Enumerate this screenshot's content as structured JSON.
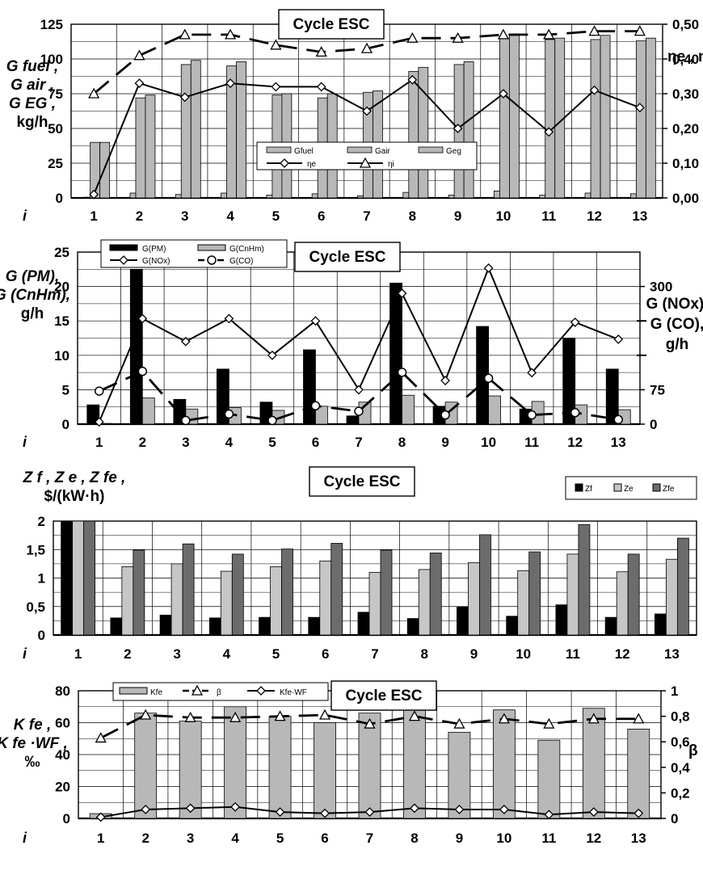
{
  "figure": {
    "panels": [
      {
        "box_title": "Cycle ESC",
        "x_symbol": "i",
        "left_axis_lines": [
          "G fuel ,",
          "G air ,",
          "G EG ,",
          "kg/h"
        ],
        "right_axis_label": "ηe , ηi",
        "left_ticks": [
          "0",
          "25",
          "50",
          "75",
          "100",
          "125"
        ],
        "right_ticks": [
          "0,00",
          "0,10",
          "0,20",
          "0,30",
          "0,40",
          "0,50"
        ]
      },
      {
        "box_title": "Cycle ESC",
        "x_symbol": "i",
        "left_axis_lines": [
          "G (PM),",
          "G (CnHm),",
          "g/h"
        ],
        "right_axis_lines": [
          "G (NOx),",
          "G (CO),",
          "g/h"
        ],
        "left_ticks": [
          "0",
          "5",
          "10",
          "15",
          "20",
          "25"
        ],
        "right_ticks": [
          "0",
          "75",
          "300"
        ]
      },
      {
        "box_title": "Cycle ESC",
        "x_symbol": "i",
        "left_axis_lines": [
          "Z f , Z e , Z fe ,",
          "$/(kW·h)"
        ],
        "left_ticks": [
          "0",
          "0,5",
          "1",
          "1,5",
          "2"
        ]
      },
      {
        "box_title": "Cycle ESC",
        "x_symbol": "i",
        "left_axis_lines": [
          "K fe ,",
          "K fe ·WF ,",
          "‰"
        ],
        "right_axis_label": "β",
        "left_ticks": [
          "0",
          "20",
          "40",
          "60",
          "80"
        ],
        "right_ticks": [
          "0",
          "0,2",
          "0,4",
          "0,6",
          "0,8",
          "1"
        ]
      }
    ]
  },
  "chart_data": [
    {
      "type": "bar",
      "categories": [
        "1",
        "2",
        "3",
        "4",
        "5",
        "6",
        "7",
        "8",
        "9",
        "10",
        "11",
        "12",
        "13"
      ],
      "ylim": [
        0,
        125
      ],
      "y2lim": [
        0,
        0.5
      ],
      "grid": true,
      "legend_position": "center",
      "series": [
        {
          "name": "Gfuel",
          "axis": "left",
          "color": "#b8b8b8",
          "values": [
            0.5,
            3.5,
            2.5,
            3.5,
            2,
            3,
            1.5,
            4,
            2,
            5,
            2,
            3.5,
            3
          ]
        },
        {
          "name": "Gair",
          "axis": "left",
          "color": "#b8b8b8",
          "values": [
            40,
            72,
            96,
            95,
            74,
            72,
            76,
            91,
            96,
            115,
            114,
            114,
            113
          ]
        },
        {
          "name": "Geg",
          "axis": "left",
          "color": "#b8b8b8",
          "values": [
            40,
            74,
            99,
            98,
            75,
            75,
            77,
            94,
            98,
            117,
            115,
            117,
            115
          ]
        },
        {
          "name": "ηe",
          "axis": "right",
          "type": "line",
          "marker": "diamond",
          "dash": "solid",
          "values": [
            0.01,
            0.33,
            0.29,
            0.33,
            0.32,
            0.32,
            0.25,
            0.34,
            0.2,
            0.3,
            0.19,
            0.31,
            0.26
          ]
        },
        {
          "name": "ηi",
          "axis": "right",
          "type": "line",
          "marker": "triangle",
          "dash": "long-dash",
          "values": [
            0.3,
            0.41,
            0.47,
            0.47,
            0.44,
            0.42,
            0.43,
            0.46,
            0.46,
            0.47,
            0.47,
            0.48,
            0.48
          ]
        }
      ]
    },
    {
      "type": "bar",
      "categories": [
        "1",
        "2",
        "3",
        "4",
        "5",
        "6",
        "7",
        "8",
        "9",
        "10",
        "11",
        "12",
        "13"
      ],
      "ylim": [
        0,
        25
      ],
      "y2lim": [
        0,
        375
      ],
      "grid": true,
      "legend_position": "top-left",
      "series": [
        {
          "name": "G(PM)",
          "axis": "left",
          "color": "#000000",
          "values": [
            2.8,
            22.5,
            3.6,
            8,
            3.2,
            10.8,
            1.2,
            20.5,
            2.6,
            14.2,
            2.2,
            12.5,
            8
          ]
        },
        {
          "name": "G(CnHm)",
          "axis": "left",
          "color": "#b8b8b8",
          "values": [
            0.1,
            3.8,
            2.2,
            2.4,
            2,
            2.6,
            3.2,
            4.2,
            3.2,
            4.1,
            3.3,
            2.8,
            2.1
          ]
        },
        {
          "name": "G(NOx)",
          "axis": "right",
          "type": "line",
          "marker": "diamond",
          "dash": "solid",
          "values": [
            5,
            230,
            180,
            230,
            150,
            225,
            75,
            285,
            95,
            340,
            112,
            222,
            185
          ]
        },
        {
          "name": "G(CO)",
          "axis": "right",
          "type": "line",
          "marker": "circle",
          "dash": "long-dash",
          "values": [
            72,
            115,
            8,
            22,
            8,
            40,
            28,
            113,
            20,
            100,
            20,
            25,
            10
          ]
        }
      ]
    },
    {
      "type": "bar",
      "categories": [
        "1",
        "2",
        "3",
        "4",
        "5",
        "6",
        "7",
        "8",
        "9",
        "10",
        "11",
        "12",
        "13"
      ],
      "ylim": [
        0,
        2
      ],
      "grid": true,
      "legend_position": "top-right",
      "series": [
        {
          "name": "Zf",
          "color": "#000000",
          "values": [
            2,
            0.3,
            0.35,
            0.3,
            0.31,
            0.31,
            0.4,
            0.29,
            0.49,
            0.33,
            0.53,
            0.31,
            0.37
          ]
        },
        {
          "name": "Ze",
          "color": "#c6c6c6",
          "values": [
            2,
            1.2,
            1.25,
            1.12,
            1.2,
            1.3,
            1.1,
            1.15,
            1.27,
            1.13,
            1.42,
            1.11,
            1.33
          ]
        },
        {
          "name": "Zfe",
          "color": "#6c6c6c",
          "values": [
            2,
            1.49,
            1.6,
            1.42,
            1.51,
            1.61,
            1.49,
            1.44,
            1.76,
            1.46,
            1.94,
            1.42,
            1.7
          ]
        }
      ]
    },
    {
      "type": "bar",
      "categories": [
        "1",
        "2",
        "3",
        "4",
        "5",
        "6",
        "7",
        "8",
        "9",
        "10",
        "11",
        "12",
        "13"
      ],
      "ylim": [
        0,
        80
      ],
      "y2lim": [
        0,
        1
      ],
      "grid": true,
      "legend_position": "top-left",
      "series": [
        {
          "name": "Kfe",
          "axis": "left",
          "color": "#b8b8b8",
          "values": [
            3,
            66,
            61,
            70,
            64,
            60,
            66,
            69,
            54,
            68,
            49,
            69,
            56
          ]
        },
        {
          "name": "β",
          "axis": "right",
          "type": "line",
          "marker": "triangle",
          "dash": "long-dash",
          "values": [
            0.63,
            0.81,
            0.79,
            0.79,
            0.8,
            0.81,
            0.74,
            0.8,
            0.74,
            0.78,
            0.74,
            0.78,
            0.78
          ]
        },
        {
          "name": "Kfe·WF",
          "axis": "right",
          "type": "line",
          "marker": "diamond",
          "dash": "solid",
          "values": [
            0.01,
            0.07,
            0.08,
            0.09,
            0.05,
            0.04,
            0.05,
            0.08,
            0.07,
            0.07,
            0.03,
            0.05,
            0.04
          ]
        }
      ]
    }
  ]
}
